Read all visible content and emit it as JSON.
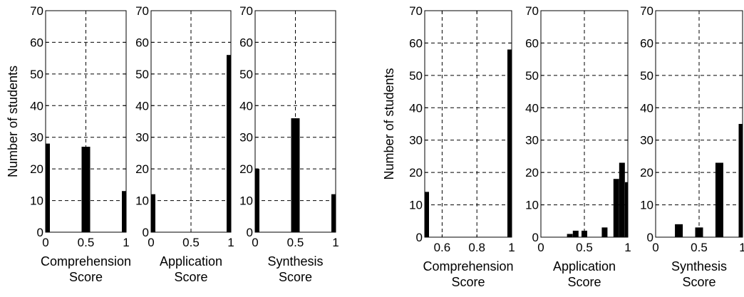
{
  "colors": {
    "bar": "#000000",
    "grid": "#000000",
    "frame": "#000000",
    "background": "#ffffff"
  },
  "chart_data": [
    {
      "type": "bar",
      "group": "left",
      "grid": true,
      "xlabel": [
        "Comprehension",
        "Score"
      ],
      "ylabel": "Number of students",
      "xlim": [
        0,
        1
      ],
      "ylim": [
        0,
        70
      ],
      "xticks": [
        0,
        0.5,
        1
      ],
      "xtick_labels": [
        "0",
        "0.5",
        "1"
      ],
      "yticks": [
        0,
        10,
        20,
        30,
        40,
        50,
        60,
        70
      ],
      "ytick_labels": [
        "0",
        "10",
        "20",
        "30",
        "40",
        "50",
        "60",
        "70"
      ],
      "bars": [
        {
          "x": 0,
          "value": 28
        },
        {
          "x": 0.5,
          "value": 27
        },
        {
          "x": 1,
          "value": 13
        }
      ]
    },
    {
      "type": "bar",
      "group": "left",
      "grid": true,
      "xlabel": [
        "Application",
        "Score"
      ],
      "ylabel": "",
      "xlim": [
        0,
        1
      ],
      "ylim": [
        0,
        70
      ],
      "xticks": [
        0,
        0.5,
        1
      ],
      "xtick_labels": [
        "0",
        "0.5",
        "1"
      ],
      "yticks": [
        0,
        10,
        20,
        30,
        40,
        50,
        60,
        70
      ],
      "ytick_labels": [
        "0",
        "10",
        "20",
        "30",
        "40",
        "50",
        "60",
        "70"
      ],
      "bars": [
        {
          "x": 0,
          "value": 12
        },
        {
          "x": 0.5,
          "value": 0
        },
        {
          "x": 1,
          "value": 56
        }
      ]
    },
    {
      "type": "bar",
      "group": "left",
      "grid": true,
      "xlabel": [
        "Synthesis",
        "Score"
      ],
      "ylabel": "",
      "xlim": [
        0,
        1
      ],
      "ylim": [
        0,
        70
      ],
      "xticks": [
        0,
        0.5,
        1
      ],
      "xtick_labels": [
        "0",
        "0.5",
        "1"
      ],
      "yticks": [
        0,
        10,
        20,
        30,
        40,
        50,
        60,
        70
      ],
      "ytick_labels": [
        "0",
        "10",
        "20",
        "30",
        "40",
        "50",
        "60",
        "70"
      ],
      "bars": [
        {
          "x": 0,
          "value": 20
        },
        {
          "x": 0.5,
          "value": 36
        },
        {
          "x": 1,
          "value": 12
        }
      ]
    },
    {
      "type": "bar",
      "group": "right",
      "grid": true,
      "xlabel": [
        "Comprehension",
        "Score"
      ],
      "ylabel": "Number of students",
      "xlim": [
        0.5,
        1
      ],
      "ylim": [
        0,
        70
      ],
      "xticks": [
        0.6,
        0.8,
        1
      ],
      "xtick_labels": [
        "0.6",
        "0.8",
        "1"
      ],
      "yticks": [
        0,
        10,
        20,
        30,
        40,
        50,
        60,
        70
      ],
      "ytick_labels": [
        "0",
        "10",
        "20",
        "30",
        "40",
        "50",
        "60",
        "70"
      ],
      "bars": [
        {
          "x": 0.5,
          "value": 14
        },
        {
          "x": 1,
          "value": 58
        }
      ]
    },
    {
      "type": "bar",
      "group": "right",
      "grid": true,
      "xlabel": [
        "Application",
        "Score"
      ],
      "ylabel": "",
      "xlim": [
        0,
        1
      ],
      "ylim": [
        0,
        70
      ],
      "xticks": [
        0,
        0.5,
        1
      ],
      "xtick_labels": [
        "0",
        "0.5",
        "1"
      ],
      "yticks": [
        0,
        10,
        20,
        30,
        40,
        50,
        60,
        70
      ],
      "ytick_labels": [
        "0",
        "10",
        "20",
        "30",
        "40",
        "50",
        "60",
        "70"
      ],
      "bars": [
        {
          "x": 0.333,
          "value": 1
        },
        {
          "x": 0.4,
          "value": 2
        },
        {
          "x": 0.5,
          "value": 2
        },
        {
          "x": 0.733,
          "value": 3
        },
        {
          "x": 0.867,
          "value": 18
        },
        {
          "x": 0.933,
          "value": 23
        },
        {
          "x": 1,
          "value": 17
        }
      ]
    },
    {
      "type": "bar",
      "group": "right",
      "grid": true,
      "xlabel": [
        "Synthesis",
        "Score"
      ],
      "ylabel": "",
      "xlim": [
        0,
        1
      ],
      "ylim": [
        0,
        70
      ],
      "xticks": [
        0,
        0.5,
        1
      ],
      "xtick_labels": [
        "0",
        "0.5",
        "1"
      ],
      "yticks": [
        0,
        10,
        20,
        30,
        40,
        50,
        60,
        70
      ],
      "ytick_labels": [
        "0",
        "10",
        "20",
        "30",
        "40",
        "50",
        "60",
        "70"
      ],
      "bars": [
        {
          "x": 0.267,
          "value": 4
        },
        {
          "x": 0.5,
          "value": 3
        },
        {
          "x": 0.733,
          "value": 23
        },
        {
          "x": 1,
          "value": 35
        }
      ]
    }
  ]
}
